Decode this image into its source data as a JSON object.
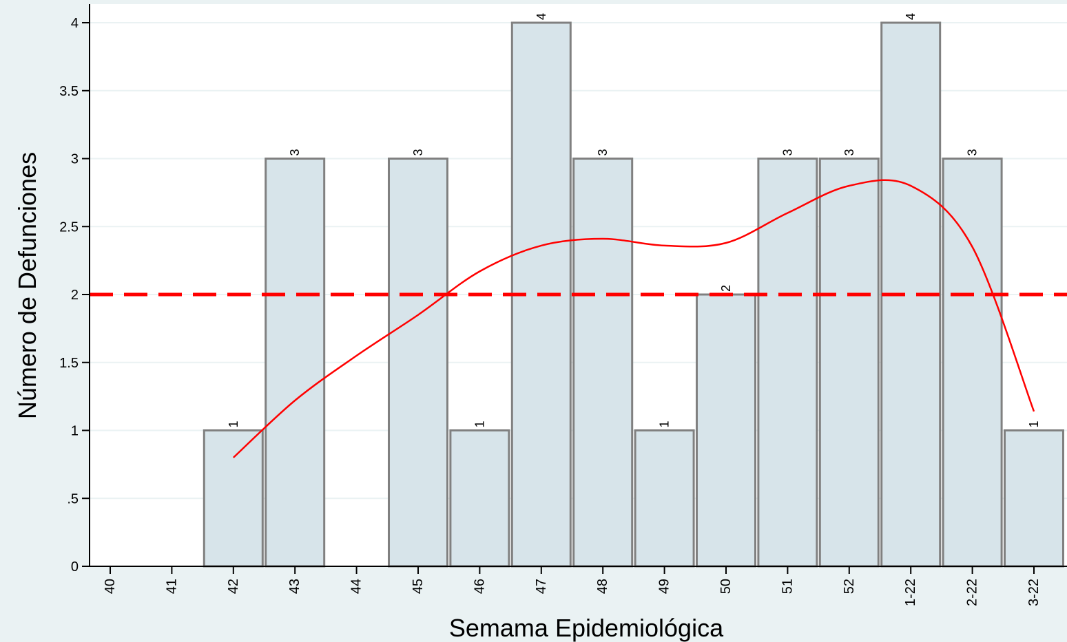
{
  "chart_data": {
    "type": "bar",
    "title": "",
    "xlabel": "Semama Epidemiológica",
    "ylabel": "Número de Defunciones",
    "categories": [
      "40",
      "41",
      "42",
      "43",
      "44",
      "45",
      "46",
      "47",
      "48",
      "49",
      "50",
      "51",
      "52",
      "1-22",
      "2-22",
      "3-22"
    ],
    "values": [
      0,
      0,
      1,
      3,
      0,
      3,
      1,
      4,
      3,
      1,
      2,
      3,
      3,
      4,
      3,
      1
    ],
    "yticks": [
      "0",
      ".5",
      "1",
      "1.5",
      "2",
      "2.5",
      "3",
      "3.5",
      "4"
    ],
    "ytick_values": [
      0,
      0.5,
      1,
      1.5,
      2,
      2.5,
      3,
      3.5,
      4
    ],
    "ylim": [
      0,
      4.12
    ],
    "grid": true,
    "reference_line": {
      "value": 2,
      "style": "dashed",
      "color": "#ff0000"
    },
    "trend_line": {
      "style": "smooth",
      "color": "#ff0000",
      "x": [
        "42",
        "43",
        "44",
        "45",
        "46",
        "47",
        "48",
        "49",
        "50",
        "51",
        "52",
        "1-22",
        "2-22",
        "3-22"
      ],
      "values": [
        0.8,
        1.22,
        1.55,
        1.85,
        2.17,
        2.36,
        2.41,
        2.36,
        2.38,
        2.6,
        2.8,
        2.8,
        2.35,
        1.14
      ]
    },
    "colors": {
      "bar_fill": "#d7e4ea",
      "bar_stroke": "#808080",
      "background": "#eaf2f3",
      "plot_background": "#ffffff",
      "grid": "#eaf2f3"
    }
  }
}
